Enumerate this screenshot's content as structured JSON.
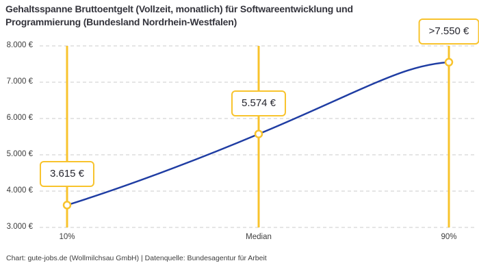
{
  "title": "Gehaltsspanne Bruttoentgelt (Vollzeit, monatlich) für Softwareentwicklung und Programmierung (Bundesland Nordrhein-Westfalen)",
  "title_lines": [
    "Gehaltsspanne Bruttoentgelt (Vollzeit, monatlich) für Softwareentwicklung und",
    "Programmierung (Bundesland Nordrhein-Westfalen)"
  ],
  "footer": "Chart: gute-jobs.de (Wollmilchsau GmbH) | Datenquelle: Bundesagentur für Arbeit",
  "colors": {
    "accent_yellow": "#F8C32C",
    "line_blue": "#1F3DA3",
    "grid": "#CBCBCB",
    "title_text": "#34343C",
    "axis_text": "#3C3C3C",
    "callout_text": "#26262E"
  },
  "chart_data": {
    "type": "line",
    "title": "Gehaltsspanne Bruttoentgelt (Vollzeit, monatlich) für Softwareentwicklung und Programmierung (Bundesland Nordrhein-Westfalen)",
    "categories": [
      "10%",
      "Median",
      "90%"
    ],
    "values": [
      3615,
      5574,
      7550
    ],
    "point_labels": [
      "3.615 €",
      "5.574 €",
      ">7.550 €"
    ],
    "ylim": [
      3000,
      8000
    ],
    "yticks": [
      3000,
      4000,
      5000,
      6000,
      7000,
      8000
    ],
    "ytick_labels": [
      "3.000 €",
      "4.000 €",
      "5.000 €",
      "6.000 €",
      "7.000 €",
      "8.000 €"
    ],
    "xlabel": "",
    "ylabel": "",
    "grid": "horizontal-dashed",
    "legend": "none",
    "annotations": "vertical highlight line with open circle marker and value callout at each percentile"
  }
}
